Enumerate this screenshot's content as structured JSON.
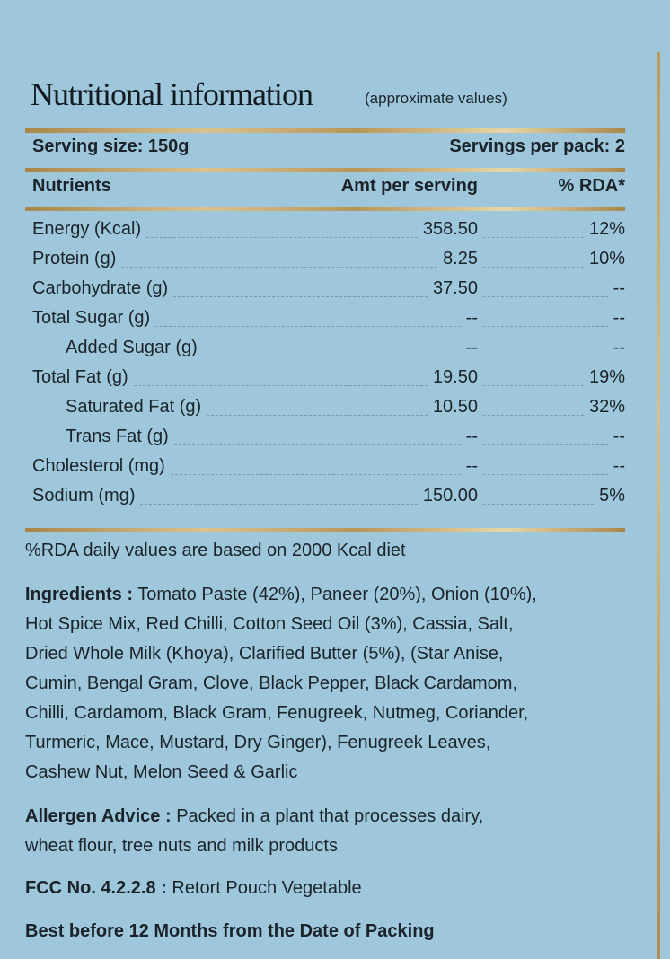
{
  "header": {
    "title": "Nutritional information",
    "subtitle": "(approximate values)"
  },
  "serving": {
    "size": "Serving size: 150g",
    "per_pack": "Servings per pack: 2"
  },
  "columns": {
    "nutrients": "Nutrients",
    "amount": "Amt per serving",
    "rda": "% RDA*"
  },
  "rows": [
    {
      "name": "Energy (Kcal)",
      "amount": "358.50",
      "rda": "12%",
      "indent": false
    },
    {
      "name": "Protein (g)",
      "amount": "8.25",
      "rda": "10%",
      "indent": false
    },
    {
      "name": "Carbohydrate (g)",
      "amount": "37.50",
      "rda": "--",
      "indent": false
    },
    {
      "name": "Total Sugar (g)",
      "amount": "--",
      "rda": "--",
      "indent": false
    },
    {
      "name": "Added Sugar (g)",
      "amount": "--",
      "rda": "--",
      "indent": true
    },
    {
      "name": "Total Fat (g)",
      "amount": "19.50",
      "rda": "19%",
      "indent": false
    },
    {
      "name": "Saturated Fat (g)",
      "amount": "10.50",
      "rda": "32%",
      "indent": true
    },
    {
      "name": "Trans Fat (g)",
      "amount": "--",
      "rda": "--",
      "indent": true
    },
    {
      "name": "Cholesterol (mg)",
      "amount": "--",
      "rda": "--",
      "indent": false
    },
    {
      "name": "Sodium (mg)",
      "amount": "150.00",
      "rda": "5%",
      "indent": false
    }
  ],
  "footnote": "%RDA daily values are based on 2000 Kcal diet",
  "ingredients": {
    "label": "Ingredients :",
    "lines": [
      " Tomato Paste (42%), Paneer (20%), Onion (10%),",
      "Hot Spice Mix, Red Chilli, Cotton Seed Oil (3%), Cassia, Salt,",
      "Dried Whole Milk (Khoya), Clarified Butter (5%), (Star Anise,",
      "Cumin, Bengal Gram, Clove, Black Pepper, Black Cardamom,",
      "Chilli, Cardamom, Black Gram, Fenugreek, Nutmeg, Coriander,",
      "Turmeric, Mace, Mustard, Dry Ginger), Fenugreek Leaves,",
      "Cashew Nut, Melon Seed & Garlic"
    ]
  },
  "allergen": {
    "label": "Allergen Advice :",
    "lines": [
      " Packed in a plant that processes dairy,",
      "wheat flour, tree nuts and milk products"
    ]
  },
  "fcc": {
    "label": "FCC No. 4.2.2.8 :",
    "text": " Retort Pouch Vegetable"
  },
  "best_before": "Best before 12 Months from the Date of Packing"
}
